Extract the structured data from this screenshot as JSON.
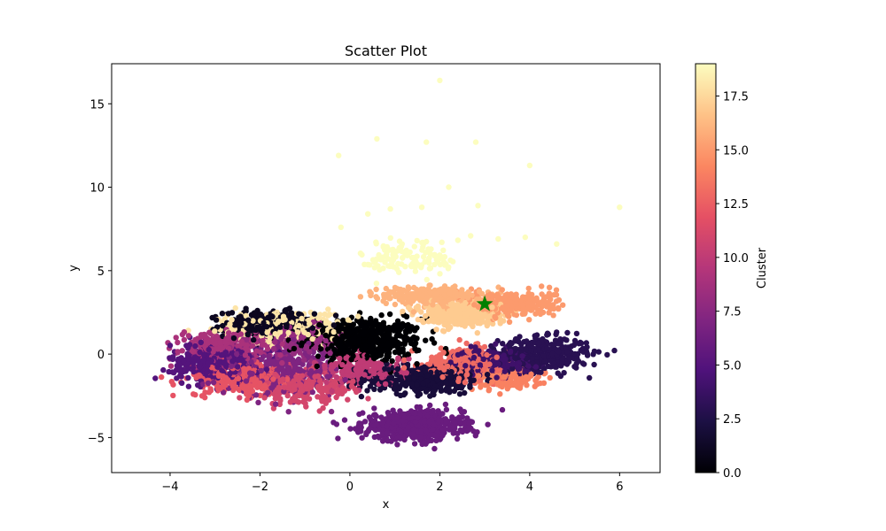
{
  "chart_data": {
    "type": "scatter",
    "title": "Scatter Plot",
    "xlabel": "x",
    "ylabel": "y",
    "xlim": [
      -5.3,
      6.9
    ],
    "ylim": [
      -7.1,
      17.4
    ],
    "xticks": [
      -4,
      -2,
      0,
      2,
      4,
      6
    ],
    "yticks": [
      -5,
      0,
      5,
      10,
      15
    ],
    "grid": false,
    "colormap": "magma",
    "colorbar": {
      "label": "Cluster",
      "range": [
        0,
        19
      ],
      "ticks": [
        0.0,
        2.5,
        5.0,
        7.5,
        10.0,
        12.5,
        15.0,
        17.5
      ]
    },
    "marker": {
      "x": 3.0,
      "y": 3.0,
      "shape": "star",
      "color": "#008000"
    },
    "clusters": [
      {
        "id": 0,
        "center": [
          0.3,
          0.8
        ],
        "spread": [
          1.2,
          1.2
        ],
        "count": 500
      },
      {
        "id": 1,
        "center": [
          -1.8,
          1.8
        ],
        "spread": [
          0.9,
          0.7
        ],
        "count": 350
      },
      {
        "id": 2,
        "center": [
          1.6,
          -1.5
        ],
        "spread": [
          1.2,
          0.8
        ],
        "count": 380
      },
      {
        "id": 3,
        "center": [
          4.3,
          0.0
        ],
        "spread": [
          0.9,
          0.9
        ],
        "count": 380
      },
      {
        "id": 4,
        "center": [
          3.2,
          -0.5
        ],
        "spread": [
          0.8,
          0.7
        ],
        "count": 250
      },
      {
        "id": 5,
        "center": [
          -3.0,
          -0.5
        ],
        "spread": [
          0.9,
          1.0
        ],
        "count": 320
      },
      {
        "id": 6,
        "center": [
          1.4,
          -4.3
        ],
        "spread": [
          1.0,
          0.8
        ],
        "count": 620
      },
      {
        "id": 7,
        "center": [
          -1.5,
          -1.0
        ],
        "spread": [
          1.2,
          1.3
        ],
        "count": 320
      },
      {
        "id": 8,
        "center": [
          -1.2,
          0.8
        ],
        "spread": [
          0.8,
          0.8
        ],
        "count": 200
      },
      {
        "id": 9,
        "center": [
          -2.8,
          0.5
        ],
        "spread": [
          0.9,
          0.9
        ],
        "count": 240
      },
      {
        "id": 10,
        "center": [
          0.3,
          -1.0
        ],
        "spread": [
          0.9,
          0.8
        ],
        "count": 200
      },
      {
        "id": 11,
        "center": [
          -1.0,
          -2.0
        ],
        "spread": [
          1.0,
          0.9
        ],
        "count": 220
      },
      {
        "id": 12,
        "center": [
          -2.5,
          -1.5
        ],
        "spread": [
          1.0,
          0.9
        ],
        "count": 260
      },
      {
        "id": 13,
        "center": [
          2.5,
          -0.5
        ],
        "spread": [
          0.8,
          0.8
        ],
        "count": 240
      },
      {
        "id": 14,
        "center": [
          3.5,
          -1.5
        ],
        "spread": [
          0.7,
          0.6
        ],
        "count": 150
      },
      {
        "id": 15,
        "center": [
          3.6,
          3.0
        ],
        "spread": [
          0.9,
          0.7
        ],
        "count": 320
      },
      {
        "id": 16,
        "center": [
          1.8,
          3.5
        ],
        "spread": [
          1.0,
          0.5
        ],
        "count": 260
      },
      {
        "id": 17,
        "center": [
          2.4,
          2.4
        ],
        "spread": [
          0.8,
          0.6
        ],
        "count": 420
      },
      {
        "id": 18,
        "center": [
          -1.5,
          1.5
        ],
        "spread": [
          1.3,
          0.9
        ],
        "count": 250
      },
      {
        "id": 19,
        "center": [
          1.4,
          5.8
        ],
        "spread": [
          1.0,
          1.1
        ],
        "count": 120
      }
    ],
    "outliers": [
      {
        "x": 2.0,
        "y": 16.4,
        "cluster": 19
      },
      {
        "x": 0.6,
        "y": 12.9,
        "cluster": 19
      },
      {
        "x": 1.7,
        "y": 12.7,
        "cluster": 19
      },
      {
        "x": 2.8,
        "y": 12.7,
        "cluster": 19
      },
      {
        "x": -0.25,
        "y": 11.9,
        "cluster": 19
      },
      {
        "x": 4.0,
        "y": 11.3,
        "cluster": 19
      },
      {
        "x": 2.2,
        "y": 10.0,
        "cluster": 19
      },
      {
        "x": 6.0,
        "y": 8.8,
        "cluster": 19
      },
      {
        "x": 2.85,
        "y": 8.9,
        "cluster": 19
      },
      {
        "x": 1.6,
        "y": 8.8,
        "cluster": 19
      },
      {
        "x": -0.2,
        "y": 7.6,
        "cluster": 19
      },
      {
        "x": 3.9,
        "y": 7.0,
        "cluster": 19
      },
      {
        "x": 3.3,
        "y": 6.9,
        "cluster": 19
      },
      {
        "x": 4.6,
        "y": 6.6,
        "cluster": 19
      },
      {
        "x": 0.9,
        "y": 8.7,
        "cluster": 19
      },
      {
        "x": 0.4,
        "y": 8.4,
        "cluster": 19
      }
    ]
  }
}
